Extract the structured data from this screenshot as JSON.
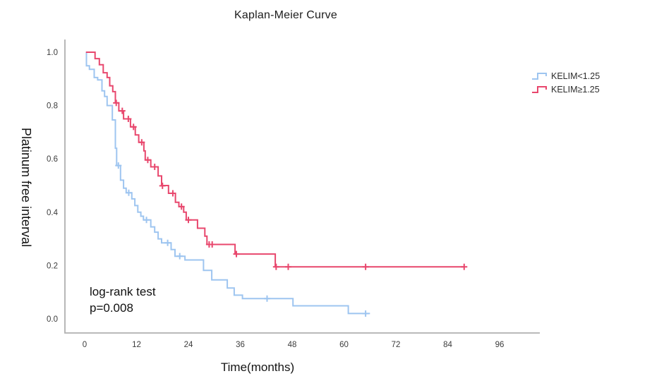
{
  "title": "Kaplan-Meier Curve",
  "annotation": {
    "line1": "log-rank test",
    "line2": "p=0.008"
  },
  "colors": {
    "axis": "#b1b1b1",
    "tick_text": "#3c3c3c",
    "kelim_low": "#9ec5f0",
    "kelim_high": "#e8476d"
  },
  "chart_data": {
    "type": "line",
    "subtype": "kaplan_meier_step",
    "title": "Kaplan-Meier Curve",
    "xlabel": "Time(months)",
    "ylabel": "Platinum free interval",
    "xlim": [
      0,
      105
    ],
    "ylim": [
      0,
      1.0
    ],
    "grid": false,
    "legend_position": "right",
    "xticks": [
      0,
      12,
      24,
      36,
      48,
      60,
      72,
      84,
      96
    ],
    "yticks": [
      1.0,
      0.8,
      0.6,
      0.4,
      0.2,
      0.0
    ],
    "annotation_text": "log-rank test p=0.008",
    "series": [
      {
        "name": "KELIM<1.25",
        "color": "#9ec5f0",
        "start": 0.3,
        "end": 66,
        "steps": [
          [
            0.4,
            0.949
          ],
          [
            1.1,
            0.936
          ],
          [
            2.2,
            0.905
          ],
          [
            3.0,
            0.896
          ],
          [
            4.0,
            0.855
          ],
          [
            4.6,
            0.834
          ],
          [
            5.2,
            0.8
          ],
          [
            6.4,
            0.746
          ],
          [
            7.1,
            0.64
          ],
          [
            7.4,
            0.575
          ],
          [
            8.3,
            0.52
          ],
          [
            9.0,
            0.49
          ],
          [
            9.6,
            0.473
          ],
          [
            10.9,
            0.45
          ],
          [
            11.6,
            0.425
          ],
          [
            12.3,
            0.4
          ],
          [
            13.0,
            0.385
          ],
          [
            13.6,
            0.371
          ],
          [
            15.3,
            0.345
          ],
          [
            16.2,
            0.325
          ],
          [
            17.0,
            0.3
          ],
          [
            17.8,
            0.285
          ],
          [
            20.0,
            0.26
          ],
          [
            20.9,
            0.235
          ],
          [
            23.2,
            0.221
          ],
          [
            27.5,
            0.182
          ],
          [
            29.4,
            0.146
          ],
          [
            33.0,
            0.116
          ],
          [
            34.6,
            0.089
          ],
          [
            36.5,
            0.076
          ],
          [
            48.2,
            0.049
          ],
          [
            61.0,
            0.02
          ]
        ],
        "censors": [
          [
            7.8,
            0.575
          ],
          [
            10.2,
            0.473
          ],
          [
            14.3,
            0.371
          ],
          [
            19.2,
            0.285
          ],
          [
            22.0,
            0.235
          ],
          [
            42.2,
            0.076
          ],
          [
            65.0,
            0.02
          ]
        ]
      },
      {
        "name": "KELIM≥1.25",
        "color": "#e8476d",
        "start": 0.3,
        "end": 88,
        "steps": [
          [
            2.4,
            0.976
          ],
          [
            3.4,
            0.953
          ],
          [
            4.3,
            0.923
          ],
          [
            5.2,
            0.905
          ],
          [
            5.8,
            0.874
          ],
          [
            6.5,
            0.852
          ],
          [
            7.1,
            0.81
          ],
          [
            7.9,
            0.78
          ],
          [
            9.0,
            0.75
          ],
          [
            10.6,
            0.72
          ],
          [
            11.7,
            0.69
          ],
          [
            12.5,
            0.662
          ],
          [
            13.7,
            0.63
          ],
          [
            14.0,
            0.596
          ],
          [
            15.3,
            0.57
          ],
          [
            17.0,
            0.536
          ],
          [
            17.8,
            0.5
          ],
          [
            19.4,
            0.471
          ],
          [
            21.0,
            0.437
          ],
          [
            21.8,
            0.421
          ],
          [
            22.9,
            0.4
          ],
          [
            23.5,
            0.371
          ],
          [
            26.1,
            0.34
          ],
          [
            27.8,
            0.31
          ],
          [
            28.3,
            0.279
          ],
          [
            34.8,
            0.243
          ],
          [
            44.1,
            0.195
          ]
        ],
        "censors": [
          [
            7.3,
            0.81
          ],
          [
            8.7,
            0.78
          ],
          [
            10.1,
            0.75
          ],
          [
            11.3,
            0.72
          ],
          [
            13.2,
            0.662
          ],
          [
            14.6,
            0.596
          ],
          [
            16.2,
            0.57
          ],
          [
            18.0,
            0.499
          ],
          [
            20.4,
            0.471
          ],
          [
            22.4,
            0.421
          ],
          [
            24.0,
            0.371
          ],
          [
            28.8,
            0.279
          ],
          [
            29.5,
            0.279
          ],
          [
            35.1,
            0.243
          ],
          [
            44.3,
            0.195
          ],
          [
            47.1,
            0.195
          ],
          [
            65.0,
            0.195
          ],
          [
            87.8,
            0.195
          ]
        ]
      }
    ]
  }
}
